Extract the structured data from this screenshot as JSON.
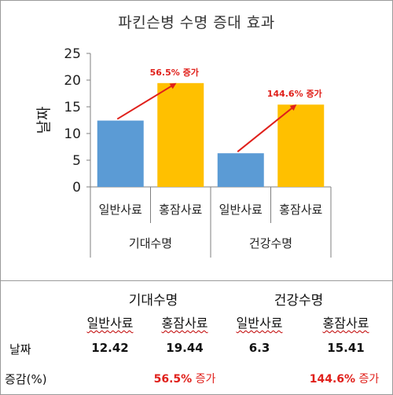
{
  "chart_data": {
    "type": "bar",
    "title": "파킨슨병 수명 증대 효과",
    "ylabel": "날짜",
    "ylim": [
      0,
      25
    ],
    "yticks": [
      0,
      5,
      10,
      15,
      20,
      25
    ],
    "groups": [
      "기대수명",
      "건강수명"
    ],
    "categories": [
      "일반사료",
      "홍잠사료",
      "일반사료",
      "홍잠사료"
    ],
    "values": [
      12.42,
      19.44,
      6.3,
      15.41
    ],
    "bar_colors": [
      "#5b9bd5",
      "#ffc000",
      "#5b9bd5",
      "#ffc000"
    ],
    "annotations": [
      {
        "text": "56.5% 증가",
        "from_index": 0,
        "to_index": 1
      },
      {
        "text": "144.6% 증가",
        "from_index": 2,
        "to_index": 3
      }
    ],
    "arrow_color": "#e0201b",
    "grid": false
  },
  "table": {
    "groups": [
      "기대수명",
      "건강수명"
    ],
    "subheaders": [
      "일반사료",
      "홍잠사료",
      "일반사료",
      "홍잠사료"
    ],
    "row_label": "날짜",
    "values": [
      "12.42",
      "19.44",
      "6.3",
      "15.41"
    ],
    "increase_label": "증감(%)",
    "increase_pct": [
      "56.5%",
      "144.6%"
    ],
    "increase_word": "증가"
  }
}
